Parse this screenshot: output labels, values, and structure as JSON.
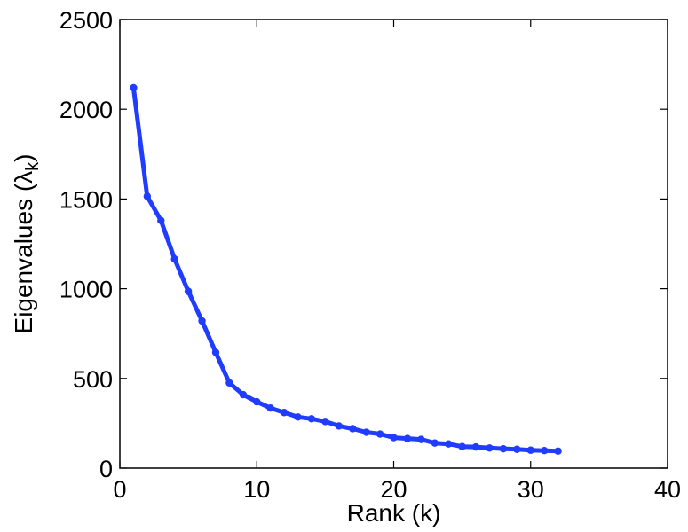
{
  "chart_data": {
    "type": "line",
    "title": "",
    "xlabel": "Rank (k)",
    "ylabel": {
      "prefix": "Eigenvalues (",
      "symbol": "λ",
      "subscript": "k",
      "suffix": ")"
    },
    "xlim": [
      0,
      40
    ],
    "ylim": [
      0,
      2500
    ],
    "xticks": [
      0,
      10,
      20,
      30,
      40
    ],
    "yticks": [
      0,
      500,
      1000,
      1500,
      2000,
      2500
    ],
    "grid": false,
    "legend": "none",
    "series": [
      {
        "color": "#1f3cff",
        "marker": "circle",
        "x": [
          1,
          2,
          3,
          4,
          5,
          6,
          7,
          8,
          9,
          10,
          11,
          12,
          13,
          14,
          15,
          16,
          17,
          18,
          19,
          20,
          21,
          22,
          23,
          24,
          25,
          26,
          27,
          28,
          29,
          30,
          31,
          32
        ],
        "values": [
          2120,
          1515,
          1380,
          1165,
          985,
          820,
          645,
          475,
          410,
          370,
          335,
          310,
          285,
          275,
          260,
          235,
          220,
          200,
          190,
          170,
          165,
          160,
          140,
          135,
          120,
          118,
          112,
          108,
          105,
          100,
          98,
          95
        ]
      }
    ]
  }
}
